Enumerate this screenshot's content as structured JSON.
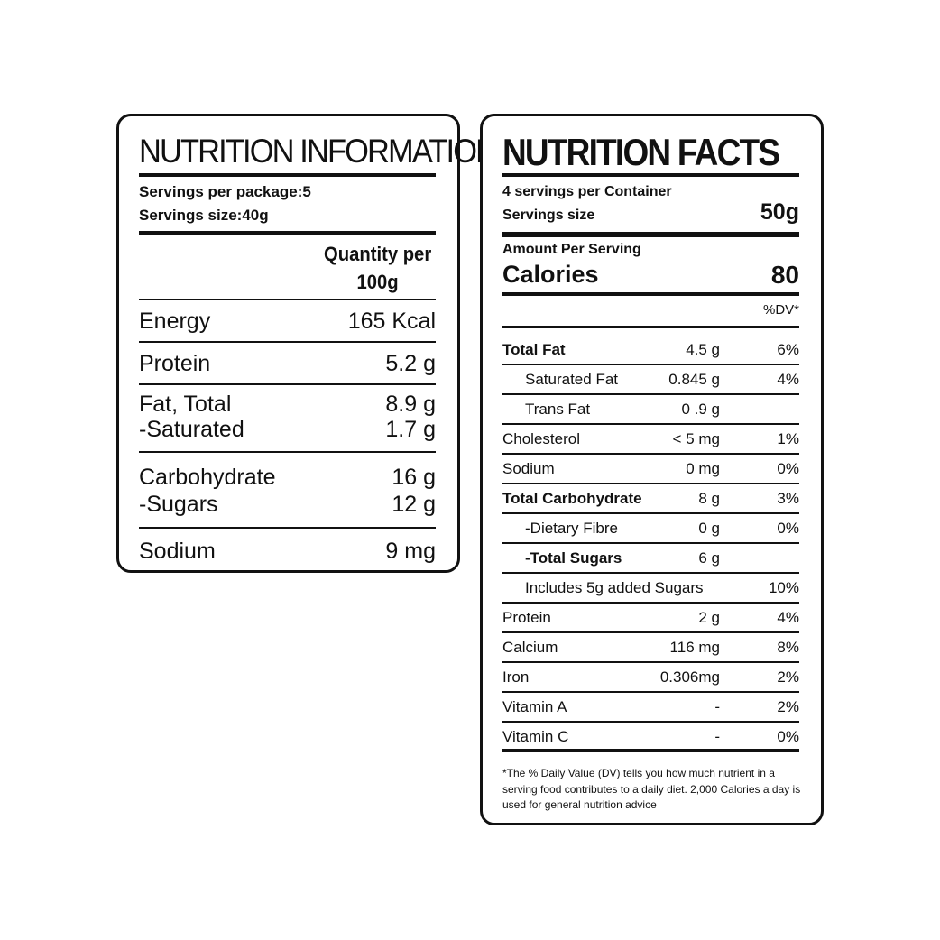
{
  "nutrition_information": {
    "title": "NUTRITION INFORMATION",
    "servings_per_package": "Servings per package:5",
    "servings_size": "Servings size:40g",
    "quantity_header_line1": "Quantity per",
    "quantity_header_line2": "100g",
    "rows": [
      {
        "label": "Energy",
        "value": "165 Kcal"
      },
      {
        "label": "Protein",
        "value": "5.2 g"
      },
      {
        "label": "Fat, Total",
        "value": "8.9 g"
      },
      {
        "label": "-Saturated",
        "value": "1.7 g"
      },
      {
        "label": "Carbohydrate",
        "value": "16 g"
      },
      {
        "label": "-Sugars",
        "value": "12 g"
      },
      {
        "label": "Sodium",
        "value": "9 mg"
      }
    ]
  },
  "nutrition_facts": {
    "title": "NUTRITION FACTS",
    "servings_per_container": "4 servings per Container",
    "servings_size_label": "Servings size",
    "servings_size_value": "50g",
    "amount_per_serving": "Amount Per Serving",
    "calories_label": "Calories",
    "calories_value": "80",
    "dv_header": "%DV*",
    "rows": [
      {
        "name": "Total Fat",
        "amount": "4.5 g",
        "dv": "6%"
      },
      {
        "name": "Saturated Fat",
        "amount": "0.845 g",
        "dv": "4%"
      },
      {
        "name": "Trans Fat",
        "amount": "0 .9 g",
        "dv": ""
      },
      {
        "name": "Cholesterol",
        "amount": "< 5 mg",
        "dv": "1%"
      },
      {
        "name": "Sodium",
        "amount": "0 mg",
        "dv": "0%"
      },
      {
        "name": "Total Carbohydrate",
        "amount": "8 g",
        "dv": "3%"
      },
      {
        "name": "-Dietary Fibre",
        "amount": "0 g",
        "dv": "0%"
      },
      {
        "name": "-Total Sugars",
        "amount": "6 g",
        "dv": ""
      },
      {
        "name": "Includes 5g added Sugars",
        "amount": "",
        "dv": "10%"
      },
      {
        "name": "Protein",
        "amount": "2 g",
        "dv": "4%"
      },
      {
        "name": "Calcium",
        "amount": "116 mg",
        "dv": "8%"
      },
      {
        "name": "Iron",
        "amount": "0.306mg",
        "dv": "2%"
      },
      {
        "name": "Vitamin A",
        "amount": "-",
        "dv": "2%"
      },
      {
        "name": "Vitamin C",
        "amount": "-",
        "dv": "0%"
      }
    ],
    "footnote": "*The % Daily Value (DV) tells you how much nutrient in a serving food contributes to a daily diet. 2,000 Calories a day is used for general nutrition advice"
  }
}
